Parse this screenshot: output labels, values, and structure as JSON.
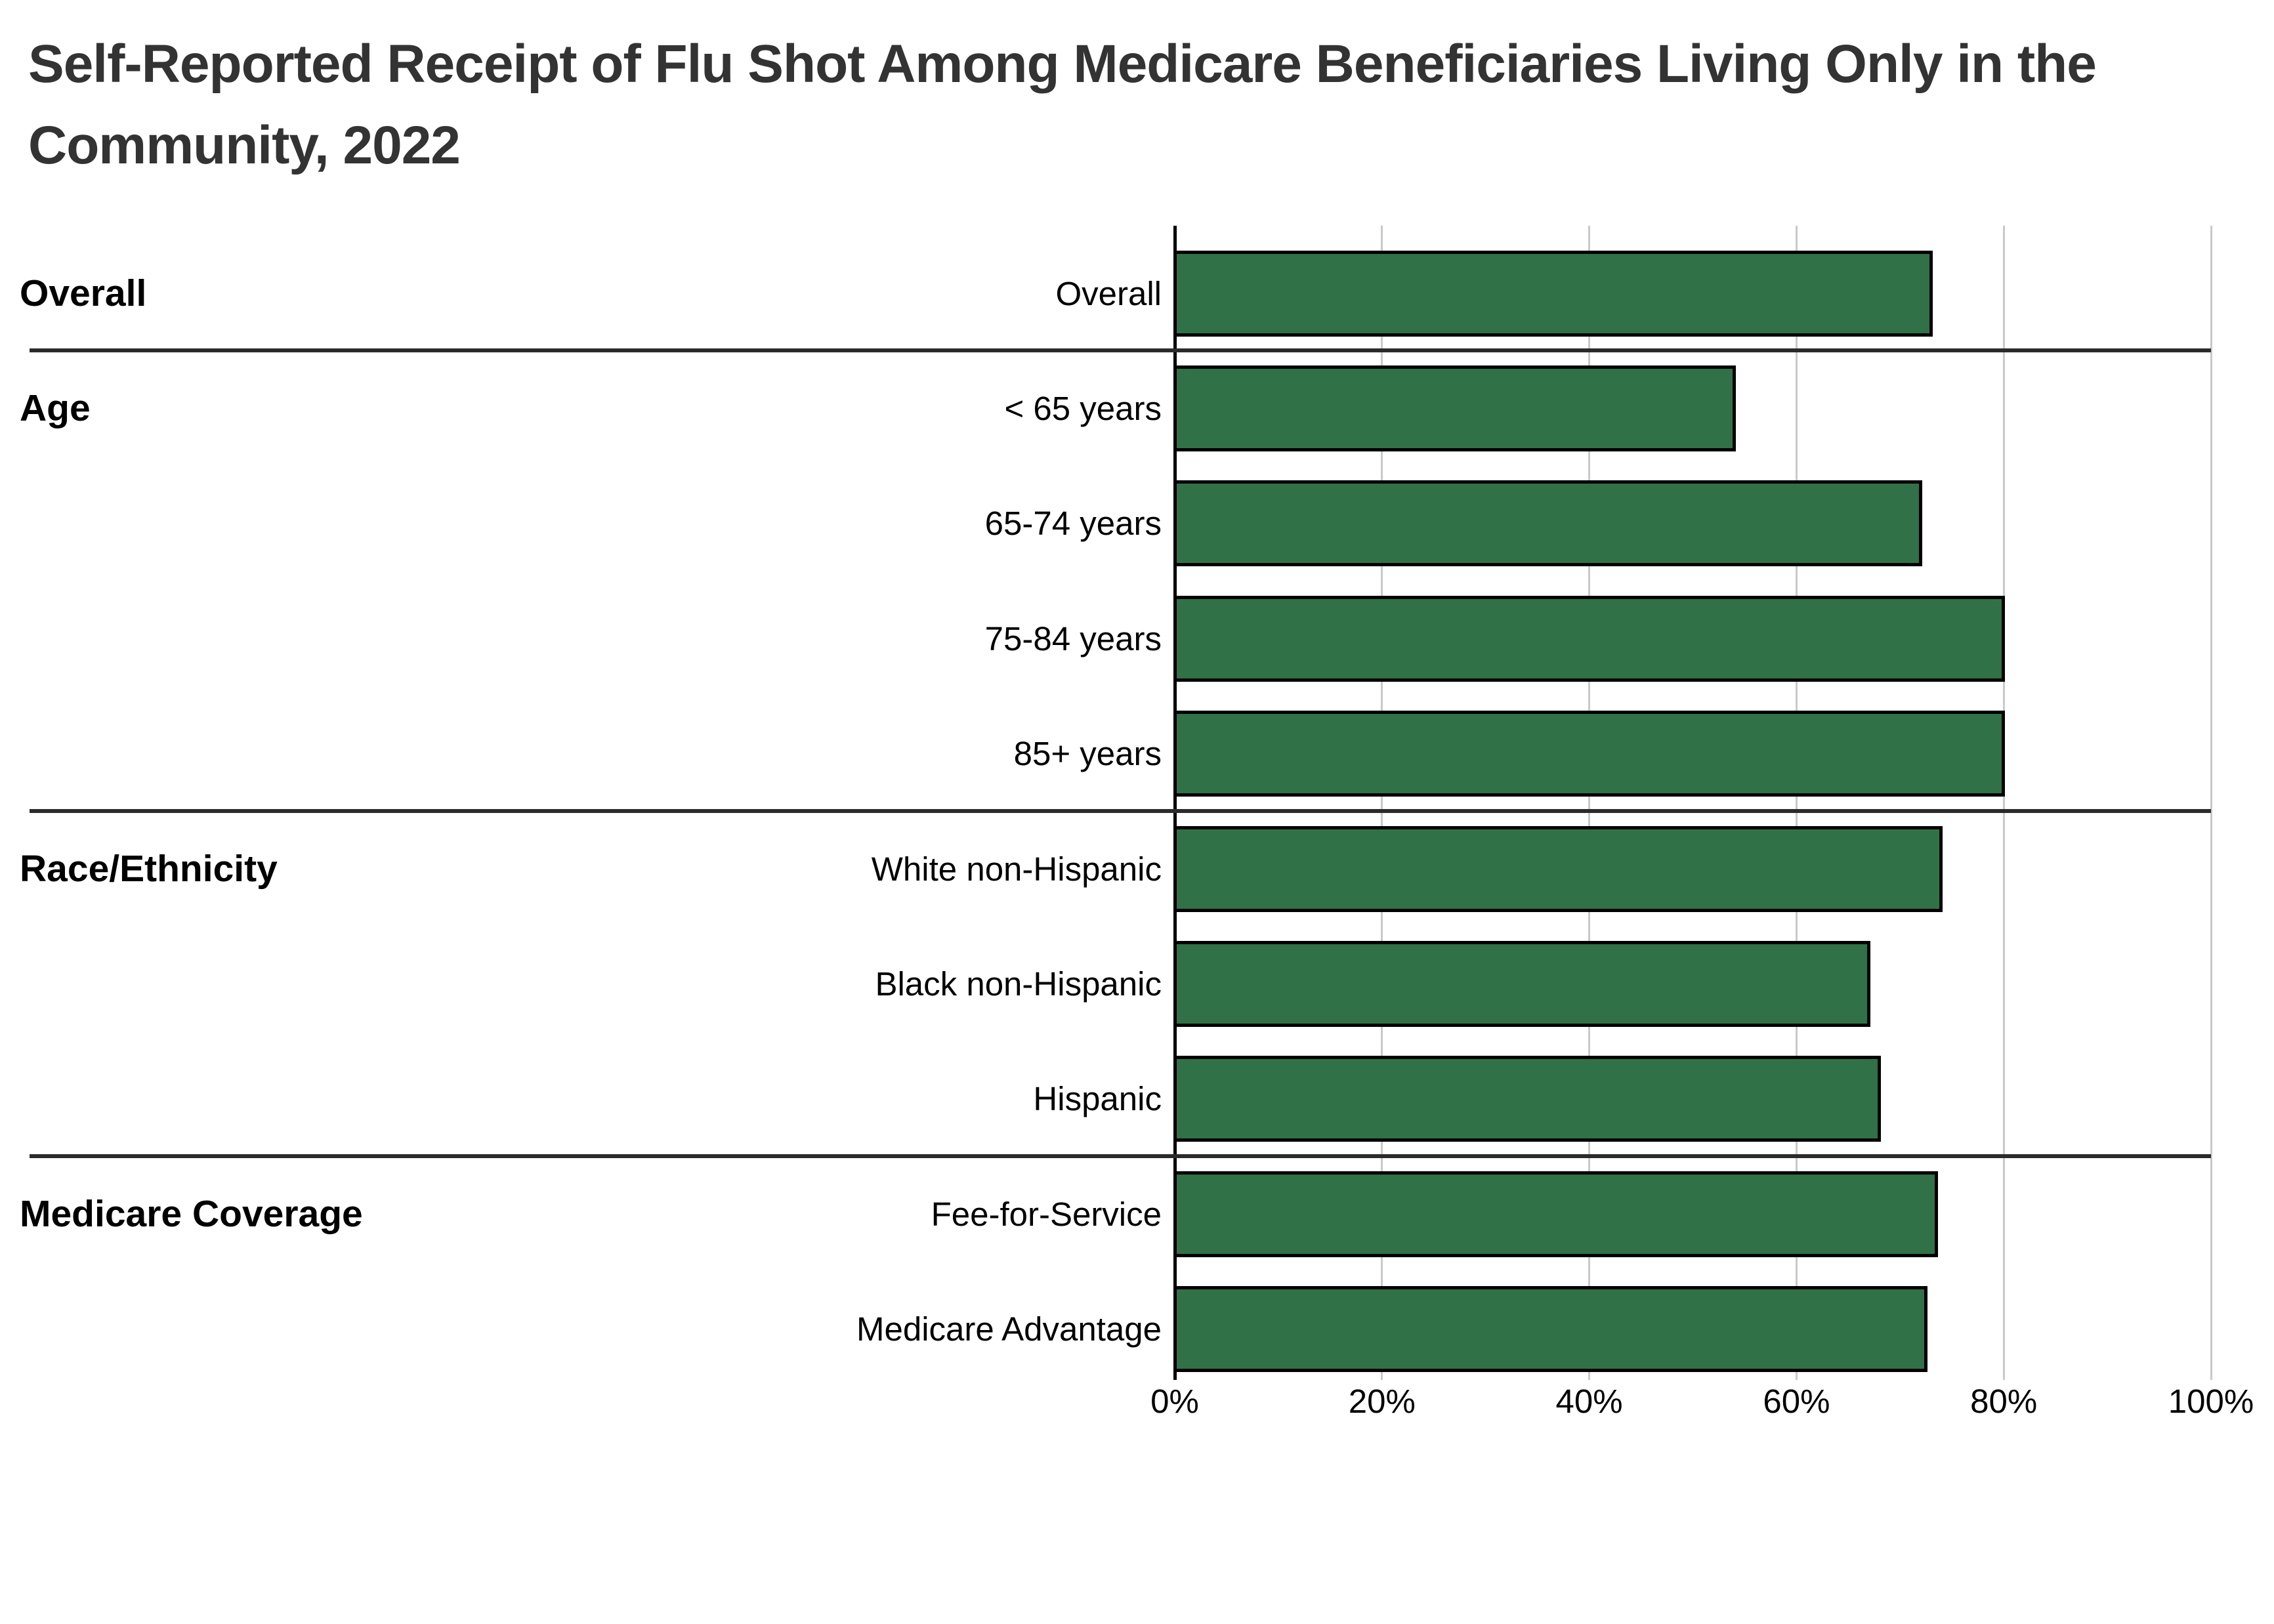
{
  "title": {
    "line1": "Self-Reported Receipt of Flu Shot Among Medicare Beneficiaries Living Only in the",
    "line2": "Community, 2022"
  },
  "chart_data": {
    "type": "bar",
    "orientation": "horizontal",
    "title": "Self-Reported Receipt of Flu Shot Among Medicare Beneficiaries Living Only in the Community, 2022",
    "unit": "percent",
    "xlabel": "",
    "ylabel": "",
    "xlim": [
      0,
      100
    ],
    "x_tick_values": [
      0,
      20,
      40,
      60,
      80,
      100
    ],
    "x_tick_labels": [
      "0%",
      "20%",
      "40%",
      "60%",
      "80%",
      "100%"
    ],
    "grid": true,
    "legend": "none",
    "groups": [
      {
        "label": "Overall",
        "rows": [
          {
            "label": "Overall",
            "value": 73
          }
        ]
      },
      {
        "label": "Age",
        "rows": [
          {
            "label": "< 65 years",
            "value": 54
          },
          {
            "label": "65-74 years",
            "value": 72
          },
          {
            "label": "75-84 years",
            "value": 80
          },
          {
            "label": "85+ years",
            "value": 80
          }
        ]
      },
      {
        "label": "Race/Ethnicity",
        "rows": [
          {
            "label": "White non-Hispanic",
            "value": 74
          },
          {
            "label": "Black non-Hispanic",
            "value": 67
          },
          {
            "label": "Hispanic",
            "value": 68
          }
        ]
      },
      {
        "label": "Medicare Coverage",
        "rows": [
          {
            "label": "Fee-for-Service",
            "value": 73.5
          },
          {
            "label": "Medicare Advantage",
            "value": 72.5
          }
        ]
      }
    ],
    "colors": {
      "bar_fill": "#317148",
      "bar_border": "#000000",
      "gridline": "#C9C9C9",
      "axis": "#000000",
      "separator": "#2B2B2B",
      "title_text": "#333333",
      "label_text": "#000000"
    }
  }
}
